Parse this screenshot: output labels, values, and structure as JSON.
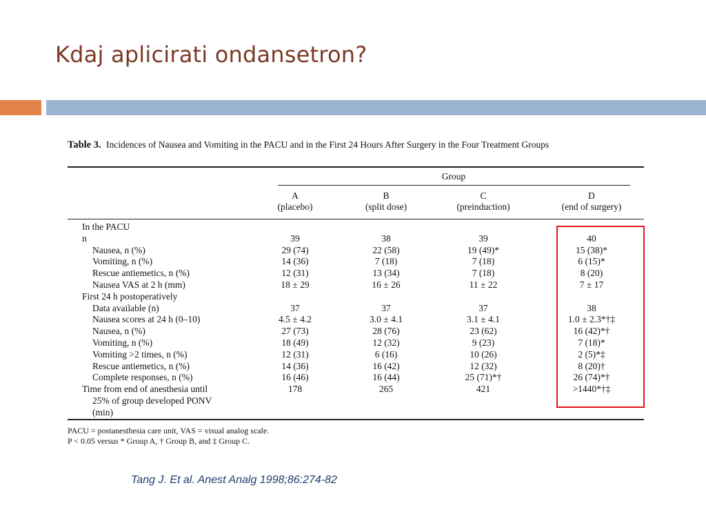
{
  "title": "Kdaj aplicirati ondansetron?",
  "table": {
    "label": "Table 3.",
    "caption": "Incidences of Nausea and Vomiting in the PACU and in the First 24 Hours After Surgery in the Four Treatment Groups",
    "group_header": "Group",
    "columns": [
      {
        "letter": "A",
        "name": "(placebo)"
      },
      {
        "letter": "B",
        "name": "(split dose)"
      },
      {
        "letter": "C",
        "name": "(preinduction)"
      },
      {
        "letter": "D",
        "name": "(end of surgery)"
      }
    ],
    "rows": [
      {
        "label": "In the PACU",
        "indent": 0,
        "values": [
          "",
          "",
          "",
          ""
        ]
      },
      {
        "label": "n",
        "indent": 0,
        "values": [
          "39",
          "38",
          "39",
          "40"
        ]
      },
      {
        "label": "Nausea, n (%)",
        "indent": 1,
        "values": [
          "29 (74)",
          "22 (58)",
          "19 (49)*",
          "15 (38)*"
        ]
      },
      {
        "label": "Vomiting, n (%)",
        "indent": 1,
        "values": [
          "14 (36)",
          "7 (18)",
          "7 (18)",
          "6 (15)*"
        ]
      },
      {
        "label": "Rescue antiemetics, n (%)",
        "indent": 1,
        "values": [
          "12 (31)",
          "13 (34)",
          "7 (18)",
          "8 (20)"
        ]
      },
      {
        "label": "Nausea VAS at 2 h (mm)",
        "indent": 1,
        "values": [
          "18  ± 29",
          "16  ± 26",
          "11  ± 22",
          "7  ± 17"
        ]
      },
      {
        "label": "First 24 h postoperatively",
        "indent": 0,
        "values": [
          "",
          "",
          "",
          ""
        ]
      },
      {
        "label": "Data available (n)",
        "indent": 1,
        "values": [
          "37",
          "37",
          "37",
          "38"
        ]
      },
      {
        "label": "Nausea scores at 24 h (0–10)",
        "indent": 1,
        "values": [
          "4.5  ± 4.2",
          "3.0  ± 4.1",
          "3.1  ± 4.1",
          "1.0  ± 2.3*†‡"
        ]
      },
      {
        "label": "Nausea, n (%)",
        "indent": 1,
        "values": [
          "27 (73)",
          "28 (76)",
          "23 (62)",
          "16 (42)*†"
        ]
      },
      {
        "label": "Vomiting, n (%)",
        "indent": 1,
        "values": [
          "18 (49)",
          "12 (32)",
          "9 (23)",
          "7 (18)*"
        ]
      },
      {
        "label": "Vomiting >2 times, n (%)",
        "indent": 1,
        "values": [
          "12 (31)",
          "6 (16)",
          "10 (26)",
          "2 (5)*‡"
        ]
      },
      {
        "label": "Rescue antiemetics, n (%)",
        "indent": 1,
        "values": [
          "14 (36)",
          "16 (42)",
          "12 (32)",
          "8 (20)†"
        ]
      },
      {
        "label": "Complete responses, n (%)",
        "indent": 1,
        "values": [
          "16 (46)",
          "16 (44)",
          "25 (71)*†",
          "26 (74)*†"
        ]
      },
      {
        "label": "Time from end of anesthesia until",
        "indent": 0,
        "values": [
          "178",
          "265",
          "421",
          ">1440*†‡"
        ]
      },
      {
        "label": "25% of group developed PONV",
        "indent": 1,
        "values": [
          "",
          "",
          "",
          ""
        ]
      },
      {
        "label": "(min)",
        "indent": 1,
        "values": [
          "",
          "",
          "",
          ""
        ]
      }
    ],
    "footnote_1": "PACU = postanesthesia care unit, VAS = visual analog scale.",
    "footnote_2": "P < 0.05 versus * Group A, † Group B, and ‡ Group C."
  },
  "citation": "Tang J. Et al. Anest Analg 1998;86:274-82",
  "colors": {
    "title": "#7a3a26",
    "accent_orange": "#e0824a",
    "accent_blue": "#9ab5cf",
    "highlight": "#e8141a",
    "citation": "#243a6e"
  }
}
